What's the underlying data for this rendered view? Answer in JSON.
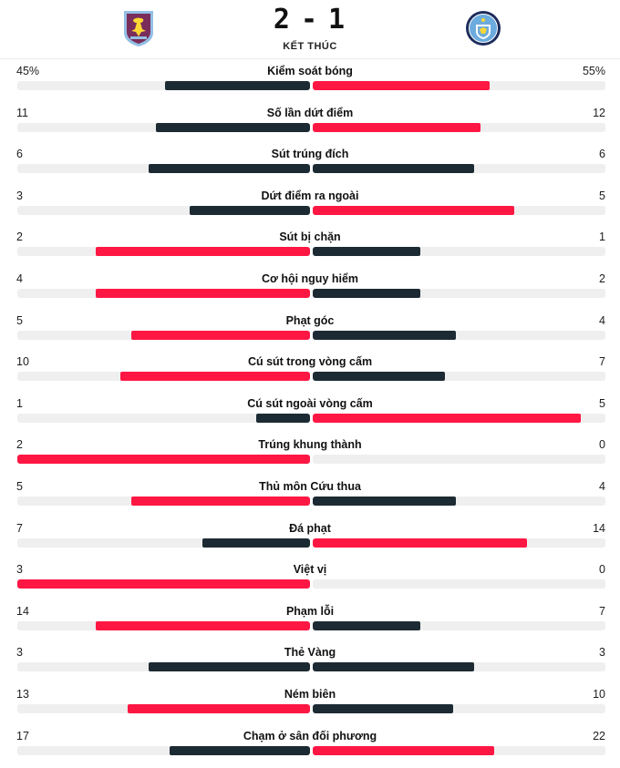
{
  "match": {
    "home_score": "2",
    "separator": "-",
    "away_score": "1",
    "status": "KẾT THÚC",
    "home_crest_icon": "aston-villa-crest-icon",
    "away_crest_icon": "manchester-city-crest-icon"
  },
  "colors": {
    "leader": "#ff1744",
    "trailer": "#1c2a33",
    "track": "#efefef",
    "villa_claret": "#7a2c5a",
    "villa_blue": "#95bfe5",
    "city_blue": "#6cabdd",
    "city_navy": "#1c2c5b"
  },
  "stats": [
    {
      "label": "Kiểm soát bóng",
      "home_display": "45%",
      "away_display": "55%",
      "home": 45,
      "away": 55
    },
    {
      "label": "Số lần dứt điểm",
      "home_display": "11",
      "away_display": "12",
      "home": 11,
      "away": 12
    },
    {
      "label": "Sút trúng đích",
      "home_display": "6",
      "away_display": "6",
      "home": 6,
      "away": 6
    },
    {
      "label": "Dứt điểm ra ngoài",
      "home_display": "3",
      "away_display": "5",
      "home": 3,
      "away": 5
    },
    {
      "label": "Sút bị chặn",
      "home_display": "2",
      "away_display": "1",
      "home": 2,
      "away": 1
    },
    {
      "label": "Cơ hội nguy hiểm",
      "home_display": "4",
      "away_display": "2",
      "home": 4,
      "away": 2
    },
    {
      "label": "Phạt góc",
      "home_display": "5",
      "away_display": "4",
      "home": 5,
      "away": 4
    },
    {
      "label": "Cú sút trong vòng cấm",
      "home_display": "10",
      "away_display": "7",
      "home": 10,
      "away": 7
    },
    {
      "label": "Cú sút ngoài vòng cấm",
      "home_display": "1",
      "away_display": "5",
      "home": 1,
      "away": 5
    },
    {
      "label": "Trúng khung thành",
      "home_display": "2",
      "away_display": "0",
      "home": 2,
      "away": 0
    },
    {
      "label": "Thủ môn Cứu thua",
      "home_display": "5",
      "away_display": "4",
      "home": 5,
      "away": 4
    },
    {
      "label": "Đá phạt",
      "home_display": "7",
      "away_display": "14",
      "home": 7,
      "away": 14
    },
    {
      "label": "Việt vị",
      "home_display": "3",
      "away_display": "0",
      "home": 3,
      "away": 0
    },
    {
      "label": "Phạm lỗi",
      "home_display": "14",
      "away_display": "7",
      "home": 14,
      "away": 7
    },
    {
      "label": "Thẻ Vàng",
      "home_display": "3",
      "away_display": "3",
      "home": 3,
      "away": 3
    },
    {
      "label": "Ném biên",
      "home_display": "13",
      "away_display": "10",
      "home": 13,
      "away": 10
    },
    {
      "label": "Chạm ở sân đối phương",
      "home_display": "17",
      "away_display": "22",
      "home": 17,
      "away": 22
    }
  ]
}
